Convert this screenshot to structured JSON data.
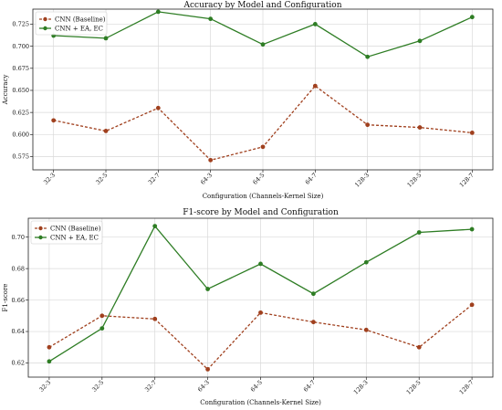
{
  "chart_data": [
    {
      "type": "line",
      "title": "Accuracy by Model and Configuration",
      "xlabel": "Configuration (Channels-Kernel Size)",
      "ylabel": "Accuracy",
      "categories": [
        "32-3",
        "32-5",
        "32-7",
        "64-3",
        "64-5",
        "64-7",
        "128-3",
        "128-5",
        "128-7"
      ],
      "ylim": [
        0.56,
        0.742
      ],
      "yticks": [
        "0.575",
        "0.600",
        "0.625",
        "0.650",
        "0.675",
        "0.700",
        "0.725"
      ],
      "grid": true,
      "legend": "top-left",
      "series": [
        {
          "name": "CNN (Baseline)",
          "color": "#a0401e",
          "style": "dashed",
          "values": [
            0.616,
            0.604,
            0.63,
            0.571,
            0.586,
            0.655,
            0.611,
            0.608,
            0.602
          ]
        },
        {
          "name": "CNN + EA, EC",
          "color": "#2e7d24",
          "style": "solid",
          "values": [
            0.712,
            0.709,
            0.739,
            0.731,
            0.702,
            0.725,
            0.688,
            0.706,
            0.733
          ]
        }
      ]
    },
    {
      "type": "line",
      "title": "F1-score by Model and Configuration",
      "xlabel": "Configuration (Channels-Kernel Size)",
      "ylabel": "F1-score",
      "categories": [
        "32-3",
        "32-5",
        "32-7",
        "64-3",
        "64-5",
        "64-7",
        "128-3",
        "128-5",
        "128-7"
      ],
      "ylim": [
        0.611,
        0.712
      ],
      "yticks": [
        "0.62",
        "0.64",
        "0.66",
        "0.68",
        "0.70"
      ],
      "grid": true,
      "legend": "top-left",
      "series": [
        {
          "name": "CNN (Baseline)",
          "color": "#a0401e",
          "style": "dashed",
          "values": [
            0.63,
            0.65,
            0.648,
            0.616,
            0.652,
            0.646,
            0.641,
            0.63,
            0.657
          ]
        },
        {
          "name": "CNN + EA, EC",
          "color": "#2e7d24",
          "style": "solid",
          "values": [
            0.621,
            0.642,
            0.707,
            0.667,
            0.683,
            0.664,
            0.684,
            0.703,
            0.705
          ]
        }
      ]
    }
  ]
}
